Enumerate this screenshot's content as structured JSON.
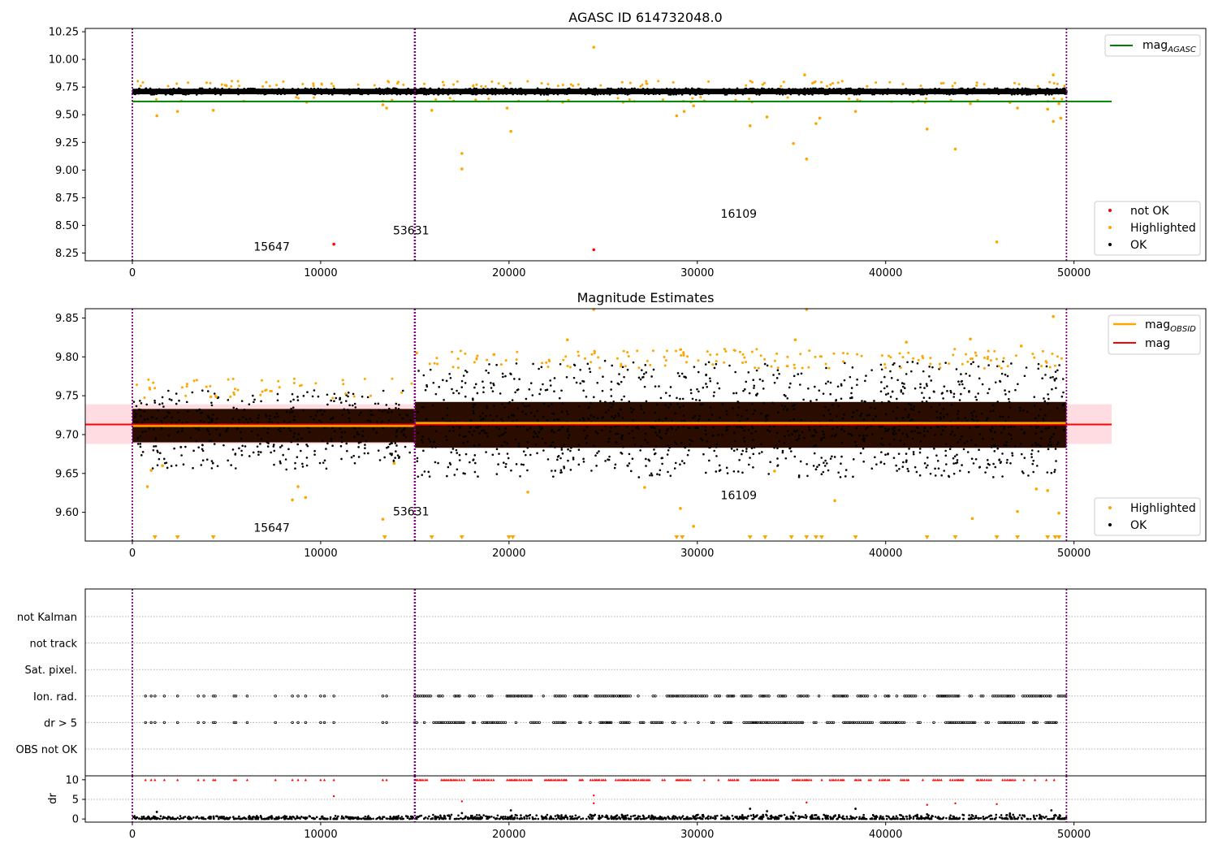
{
  "figure": {
    "background": "#ffffff",
    "colors": {
      "ok": "#000000",
      "highlighted": "#ffa500",
      "not_ok": "#ff0000",
      "mag_agasc": "#008000",
      "mag": "#ff0000",
      "mag_obsid": "#ffa500",
      "obsid_boundary": "#800080",
      "band": "#ffc0cb",
      "brown_band": "#2a0d00",
      "grid": "#b0b0b0"
    }
  },
  "chart_data": [
    {
      "type": "scatter",
      "title": "AGASC ID 614732048.0",
      "xlim": [
        -2500,
        57000
      ],
      "ylim": [
        8.18,
        10.28
      ],
      "xticks": [
        0,
        10000,
        20000,
        30000,
        40000,
        50000
      ],
      "xtick_labels": [
        "0",
        "10000",
        "20000",
        "30000",
        "40000",
        "50000"
      ],
      "yticks": [
        8.25,
        8.5,
        8.75,
        9.0,
        9.25,
        9.5,
        9.75,
        10.0,
        10.25
      ],
      "ytick_labels": [
        "8.25",
        "8.50",
        "8.75",
        "9.00",
        "9.25",
        "9.50",
        "9.75",
        "10.00",
        "10.25"
      ],
      "obsid_boundaries": [
        0,
        15000,
        49600
      ],
      "obsid_labels": [
        {
          "text": "15647",
          "x": 7400,
          "y": 8.27
        },
        {
          "text": "53631",
          "x": 14800,
          "y": 8.42
        },
        {
          "text": "16109",
          "x": 32200,
          "y": 8.57
        }
      ],
      "mag_agasc": {
        "value": 9.62,
        "x_range": [
          0,
          52000
        ]
      },
      "ok_band": {
        "center": 9.71,
        "half_width": 0.025,
        "x_range": [
          0,
          49600
        ]
      },
      "not_ok_points": [
        [
          10700,
          8.33
        ],
        [
          24500,
          8.28
        ]
      ],
      "highlighted_points": [
        [
          1300,
          9.49
        ],
        [
          2400,
          9.53
        ],
        [
          4300,
          9.54
        ],
        [
          13300,
          9.59
        ],
        [
          13500,
          9.56
        ],
        [
          15900,
          9.54
        ],
        [
          17500,
          9.15
        ],
        [
          17500,
          9.01
        ],
        [
          20100,
          9.35
        ],
        [
          19900,
          9.56
        ],
        [
          24500,
          10.11
        ],
        [
          28900,
          9.49
        ],
        [
          29300,
          9.53
        ],
        [
          29800,
          9.58
        ],
        [
          32800,
          9.4
        ],
        [
          33700,
          9.48
        ],
        [
          35100,
          9.24
        ],
        [
          35800,
          9.1
        ],
        [
          36300,
          9.42
        ],
        [
          36500,
          9.47
        ],
        [
          38400,
          9.53
        ],
        [
          42200,
          9.37
        ],
        [
          43700,
          9.19
        ],
        [
          44500,
          9.6
        ],
        [
          45900,
          8.35
        ],
        [
          46600,
          9.61
        ],
        [
          47000,
          9.56
        ],
        [
          48600,
          9.55
        ],
        [
          48900,
          9.44
        ],
        [
          49200,
          9.6
        ],
        [
          49300,
          9.47
        ],
        [
          35700,
          9.86
        ],
        [
          48900,
          9.86
        ]
      ],
      "legend_upper": [
        {
          "label": "mag",
          "subscript": "AGASC",
          "color": "#008000",
          "kind": "line"
        }
      ],
      "legend_lower": [
        {
          "label": "not OK",
          "color": "#ff0000",
          "kind": "marker"
        },
        {
          "label": "Highlighted",
          "color": "#ffa500",
          "kind": "marker"
        },
        {
          "label": "OK",
          "color": "#000000",
          "kind": "marker"
        }
      ],
      "legend_placement": [
        "upper right",
        "lower right"
      ]
    },
    {
      "type": "scatter",
      "title": "Magnitude Estimates",
      "xlim": [
        -2500,
        57000
      ],
      "ylim": [
        9.563,
        9.862
      ],
      "xticks": [
        0,
        10000,
        20000,
        30000,
        40000,
        50000
      ],
      "xtick_labels": [
        "0",
        "10000",
        "20000",
        "30000",
        "40000",
        "50000"
      ],
      "yticks": [
        9.6,
        9.65,
        9.7,
        9.75,
        9.8,
        9.85
      ],
      "ytick_labels": [
        "9.60",
        "9.65",
        "9.70",
        "9.75",
        "9.80",
        "9.85"
      ],
      "obsid_boundaries": [
        0,
        15000,
        49600
      ],
      "obsid_labels": [
        {
          "text": "15647",
          "x": 7400,
          "y": 9.575
        },
        {
          "text": "53631",
          "x": 14800,
          "y": 9.596
        },
        {
          "text": "16109",
          "x": 32200,
          "y": 9.617
        }
      ],
      "mag": {
        "value": 9.713,
        "x_range": [
          -2500,
          52000
        ],
        "band": [
          9.688,
          9.739
        ]
      },
      "mag_obsid": [
        {
          "x_range": [
            0,
            15000
          ],
          "value": 9.711
        },
        {
          "x_range": [
            15000,
            49600
          ],
          "value": 9.715
        }
      ],
      "segments": [
        {
          "x_range": [
            0,
            15000
          ],
          "band": [
            9.69,
            9.733
          ],
          "spread": [
            9.655,
            9.757
          ]
        },
        {
          "x_range": [
            15000,
            49600
          ],
          "band": [
            9.683,
            9.742
          ],
          "spread": [
            9.645,
            9.795
          ]
        }
      ],
      "highlighted_points": [
        [
          800,
          9.633
        ],
        [
          1000,
          9.654
        ],
        [
          1600,
          9.66
        ],
        [
          8500,
          9.616
        ],
        [
          8800,
          9.633
        ],
        [
          9200,
          9.619
        ],
        [
          13300,
          9.591
        ],
        [
          13900,
          9.663
        ],
        [
          15100,
          9.805
        ],
        [
          19200,
          9.803
        ],
        [
          21000,
          9.626
        ],
        [
          23100,
          9.822
        ],
        [
          24500,
          9.861
        ],
        [
          27200,
          9.632
        ],
        [
          29100,
          9.605
        ],
        [
          29800,
          9.582
        ],
        [
          34100,
          9.653
        ],
        [
          35200,
          9.822
        ],
        [
          35800,
          9.861
        ],
        [
          37300,
          9.615
        ],
        [
          41100,
          9.819
        ],
        [
          44600,
          9.592
        ],
        [
          44500,
          9.823
        ],
        [
          47000,
          9.601
        ],
        [
          47200,
          9.814
        ],
        [
          48000,
          9.63
        ],
        [
          48600,
          9.628
        ],
        [
          48900,
          9.852
        ],
        [
          49200,
          9.599
        ]
      ],
      "down_markers_x": [
        1200,
        2400,
        4300,
        13400,
        15900,
        17500,
        20000,
        20200,
        28900,
        29200,
        32800,
        33600,
        35000,
        35800,
        36300,
        36600,
        38400,
        42200,
        43700,
        45900,
        47000,
        48600,
        49000,
        49200
      ],
      "legend_upper": [
        {
          "label": "mag",
          "subscript": "OBSID",
          "color": "#ffa500",
          "kind": "line"
        },
        {
          "label": "mag",
          "subscript": "",
          "color": "#ff0000",
          "kind": "line"
        }
      ],
      "legend_lower": [
        {
          "label": "Highlighted",
          "color": "#ffa500",
          "kind": "marker"
        },
        {
          "label": "OK",
          "color": "#000000",
          "kind": "marker"
        }
      ],
      "legend_placement": [
        "upper right",
        "lower right"
      ]
    },
    {
      "type": "scatter",
      "title": "",
      "xlim": [
        -2500,
        57000
      ],
      "flag_rows": [
        "not Kalman",
        "not track",
        "Sat. pixel.",
        "Ion. rad.",
        "dr > 5",
        "OBS not OK"
      ],
      "obsid_boundaries": [
        0,
        15000,
        49600
      ],
      "flag_points": {
        "Ion. rad.": [
          700,
          1000,
          1200,
          1700,
          2400,
          3500,
          3800,
          4300,
          4400,
          5400,
          5500,
          6100,
          7600,
          8500,
          8800,
          9200,
          10000,
          10200,
          10700,
          13300,
          13500
        ],
        "dr > 5": [
          700,
          1000,
          1200,
          1700,
          2400,
          3500,
          3800,
          4300,
          4400,
          5400,
          5500,
          6100,
          7600,
          8500,
          8800,
          9200,
          10000,
          10200,
          10700,
          13300,
          13500
        ]
      },
      "dense_flag_range": [
        15000,
        49600
      ],
      "dr": {
        "ylabel": "dr",
        "ylim": [
          -0.8,
          11
        ],
        "yticks": [
          0,
          5,
          10
        ],
        "ytick_labels": [
          "0",
          "5",
          "10"
        ],
        "xticks": [
          0,
          10000,
          20000,
          30000,
          40000,
          50000
        ],
        "xtick_labels": [
          "0",
          "10000",
          "20000",
          "30000",
          "40000",
          "50000"
        ],
        "cap_value": 10,
        "red_points": [
          [
            10700,
            5.8
          ],
          [
            17500,
            4.5
          ],
          [
            24500,
            6.0
          ],
          [
            24500,
            4.0
          ],
          [
            35800,
            4.2
          ],
          [
            42200,
            3.6
          ],
          [
            43700,
            4.0
          ],
          [
            45900,
            3.8
          ]
        ]
      }
    }
  ]
}
